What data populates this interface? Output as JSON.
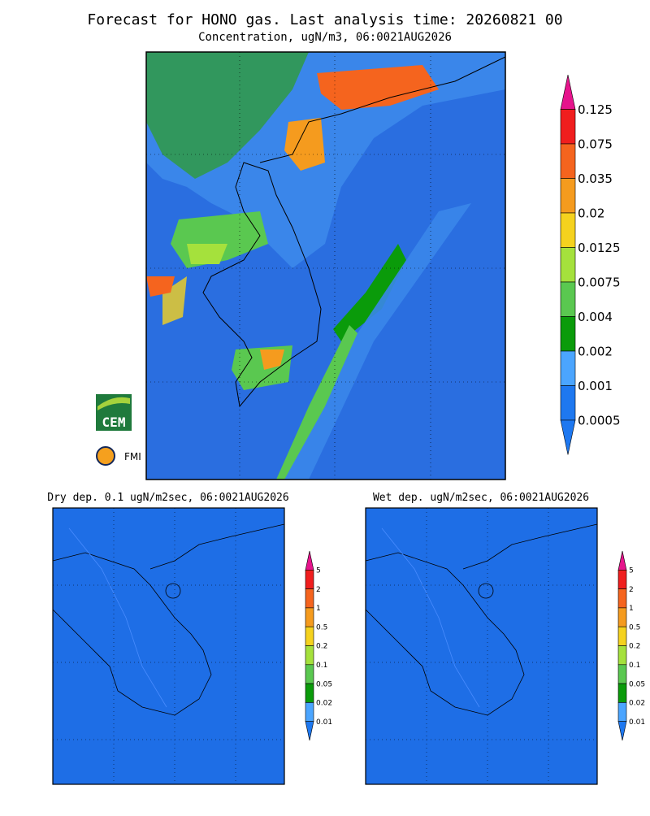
{
  "header": {
    "title": "Forecast for HONO gas. Last analysis time: 20260821 00",
    "subtitle": "Concentration, ugN/m3, 06:0021AUG2026"
  },
  "colorbar": {
    "levels": [
      0.125,
      0.075,
      0.035,
      0.02,
      0.0125,
      0.0075,
      0.004,
      0.002,
      0.001,
      0.0005
    ],
    "colors": [
      "#e6148c",
      "#f01e1e",
      "#f5641e",
      "#f59b1e",
      "#f5d21e",
      "#a5e13c",
      "#5ac850",
      "#0a9b0a",
      "#4ba5ff",
      "#1e78f0",
      "#1e78f0"
    ]
  },
  "panels": [
    {
      "title": "Dry dep. 0.1 ugN/m2sec, 06:0021AUG2026"
    },
    {
      "title": "Wet dep. ugN/m2sec, 06:0021AUG2026"
    }
  ],
  "small_colorbar": {
    "levels": [
      5,
      2,
      1,
      0.5,
      0.2,
      0.1,
      0.05,
      0.02,
      0.01
    ]
  },
  "logos": [
    "CEM",
    "FMI"
  ]
}
